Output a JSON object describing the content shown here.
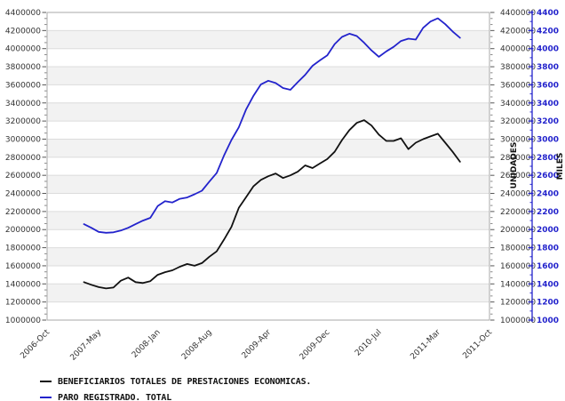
{
  "chart_data": {
    "type": "line",
    "title": "",
    "x": [
      "2007-Mar",
      "2007-Apr",
      "2007-May",
      "2007-Jun",
      "2007-Jul",
      "2007-Aug",
      "2007-Sep",
      "2007-Oct",
      "2007-Nov",
      "2007-Dec",
      "2008-Jan",
      "2008-Feb",
      "2008-Mar",
      "2008-Apr",
      "2008-May",
      "2008-Jun",
      "2008-Jul",
      "2008-Aug",
      "2008-Sep",
      "2008-Oct",
      "2008-Nov",
      "2008-Dec",
      "2009-Jan",
      "2009-Feb",
      "2009-Mar",
      "2009-Apr",
      "2009-May",
      "2009-Jun",
      "2009-Jul",
      "2009-Aug",
      "2009-Sep",
      "2009-Oct",
      "2009-Nov",
      "2009-Dec",
      "2010-Jan",
      "2010-Feb",
      "2010-Mar",
      "2010-Apr",
      "2010-May",
      "2010-Jun",
      "2010-Jul",
      "2010-Aug",
      "2010-Sep",
      "2010-Oct",
      "2010-Nov",
      "2010-Dec",
      "2011-Jan",
      "2011-Feb",
      "2011-Mar",
      "2011-Apr",
      "2011-May",
      "2011-Jun"
    ],
    "series": [
      {
        "name": "BENEFICIARIOS TOTALES DE PRESTACIONES ECONOMICAS.",
        "color": "#111111",
        "values": [
          1420000,
          1390000,
          1365000,
          1350000,
          1360000,
          1435000,
          1470000,
          1420000,
          1410000,
          1430000,
          1500000,
          1530000,
          1550000,
          1590000,
          1620000,
          1600000,
          1630000,
          1700000,
          1760000,
          1890000,
          2030000,
          2240000,
          2360000,
          2480000,
          2550000,
          2590000,
          2620000,
          2570000,
          2600000,
          2640000,
          2710000,
          2680000,
          2730000,
          2780000,
          2860000,
          2990000,
          3100000,
          3180000,
          3210000,
          3150000,
          3050000,
          2980000,
          2980000,
          3010000,
          2890000,
          2960000,
          3000000,
          3030000,
          3060000,
          2960000,
          2860000,
          2750000
        ]
      },
      {
        "name": "PARO REGISTRADO. TOTAL",
        "color": "#2323cc",
        "values": [
          2060000,
          2020000,
          1975000,
          1965000,
          1970000,
          1990000,
          2020000,
          2060000,
          2100000,
          2130000,
          2260000,
          2315000,
          2300000,
          2340000,
          2355000,
          2390000,
          2430000,
          2530000,
          2625000,
          2820000,
          2990000,
          3130000,
          3330000,
          3480000,
          3605000,
          3645000,
          3620000,
          3565000,
          3545000,
          3630000,
          3710000,
          3810000,
          3870000,
          3925000,
          4050000,
          4130000,
          4165000,
          4140000,
          4065000,
          3980000,
          3910000,
          3970000,
          4020000,
          4085000,
          4110000,
          4100000,
          4230000,
          4300000,
          4335000,
          4270000,
          4190000,
          4120000
        ]
      }
    ],
    "x_axis": {
      "total_months": 60,
      "data_start_month_offset": 5,
      "tick_month_offsets": [
        0,
        7,
        15,
        22,
        30,
        38,
        45,
        53,
        60
      ],
      "tick_labels": [
        "2006-Oct",
        "2007-May",
        "2008-Jan",
        "2008-Aug",
        "2009-Apr",
        "2009-Dec",
        "2010-Jul",
        "2011-Mar",
        "2011-Oct"
      ]
    },
    "y_axis_left": {
      "min": 1000000,
      "max": 4400000,
      "step": 200000,
      "tick_labels": [
        "4400000",
        "4200000",
        "4000000",
        "3800000",
        "3600000",
        "3400000",
        "3200000",
        "3000000",
        "2800000",
        "2600000",
        "2400000",
        "2200000",
        "2000000",
        "1800000",
        "1600000",
        "1400000",
        "1200000",
        "1000000"
      ]
    },
    "y_axis_right_units": {
      "title": "UNIDADES",
      "min": 1000000,
      "max": 4400000,
      "step": 200000,
      "tick_labels": [
        "4400000",
        "4200000",
        "4000000",
        "3800000",
        "3600000",
        "3400000",
        "3200000",
        "3000000",
        "2800000",
        "2600000",
        "2400000",
        "2200000",
        "2000000",
        "1800000",
        "1600000",
        "1400000",
        "1200000",
        "1000000"
      ]
    },
    "y_axis_right_miles": {
      "title": "MILES",
      "min": 1000,
      "max": 4400,
      "step": 200,
      "color": "#2323cc",
      "tick_labels": [
        "4400",
        "4200",
        "4000",
        "3800",
        "3600",
        "3400",
        "3200",
        "3000",
        "2800",
        "2600",
        "2400",
        "2200",
        "2000",
        "1800",
        "1600",
        "1400",
        "1200",
        "1000"
      ]
    },
    "legend_position": "bottom-left",
    "grid": "horizontal-bands",
    "colors": {
      "band_gray": "#f2f2f2",
      "band_white": "#ffffff",
      "gridline": "#dcdcdc",
      "plot_border": "#aaaaaa",
      "tick": "#555555",
      "blue_axis": "#2323cc"
    }
  }
}
